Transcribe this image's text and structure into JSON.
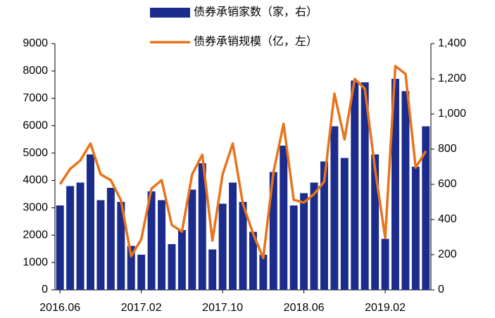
{
  "chart_data": {
    "type": "combo",
    "categories": [
      "2016.06",
      null,
      null,
      null,
      null,
      null,
      null,
      null,
      "2017.02",
      null,
      null,
      null,
      null,
      null,
      null,
      null,
      "2017.10",
      null,
      null,
      null,
      null,
      null,
      null,
      null,
      "2018.06",
      null,
      null,
      null,
      null,
      null,
      null,
      null,
      "2019.02",
      null,
      null,
      null,
      null
    ],
    "series": [
      {
        "name": "债券承销家数（家，右）",
        "type": "bar",
        "axis": "y2",
        "color": "#1c2c8c",
        "values": [
          480,
          590,
          610,
          770,
          510,
          580,
          500,
          250,
          200,
          560,
          510,
          260,
          340,
          570,
          720,
          230,
          490,
          610,
          500,
          330,
          200,
          670,
          820,
          480,
          550,
          610,
          730,
          930,
          750,
          1190,
          1180,
          770,
          290,
          1200,
          1130,
          700,
          930
        ]
      },
      {
        "name": "债券承销规模（亿，左）",
        "type": "line",
        "color": "#e8731a",
        "values": [
          3860,
          4420,
          4730,
          5350,
          4220,
          4010,
          3270,
          1230,
          1850,
          3700,
          4010,
          2370,
          2130,
          4220,
          4940,
          1800,
          4220,
          5350,
          3140,
          2060,
          1160,
          4290,
          6070,
          3290,
          3190,
          3500,
          3960,
          7170,
          5500,
          7710,
          7350,
          4420,
          1900,
          8180,
          7890,
          4470,
          5070
        ]
      }
    ],
    "ylim": [
      0,
      9000
    ],
    "yticks": [
      0,
      1000,
      2000,
      3000,
      4000,
      5000,
      6000,
      7000,
      8000,
      9000
    ],
    "y2lim": [
      0,
      1400
    ],
    "y2ticks": [
      0,
      200,
      400,
      600,
      800,
      {
        "value": 1000,
        "label": "1,000"
      },
      {
        "value": 1200,
        "label": "1,200"
      },
      {
        "value": 1400,
        "label": "1,400"
      }
    ],
    "grid": false,
    "legend": "top"
  }
}
